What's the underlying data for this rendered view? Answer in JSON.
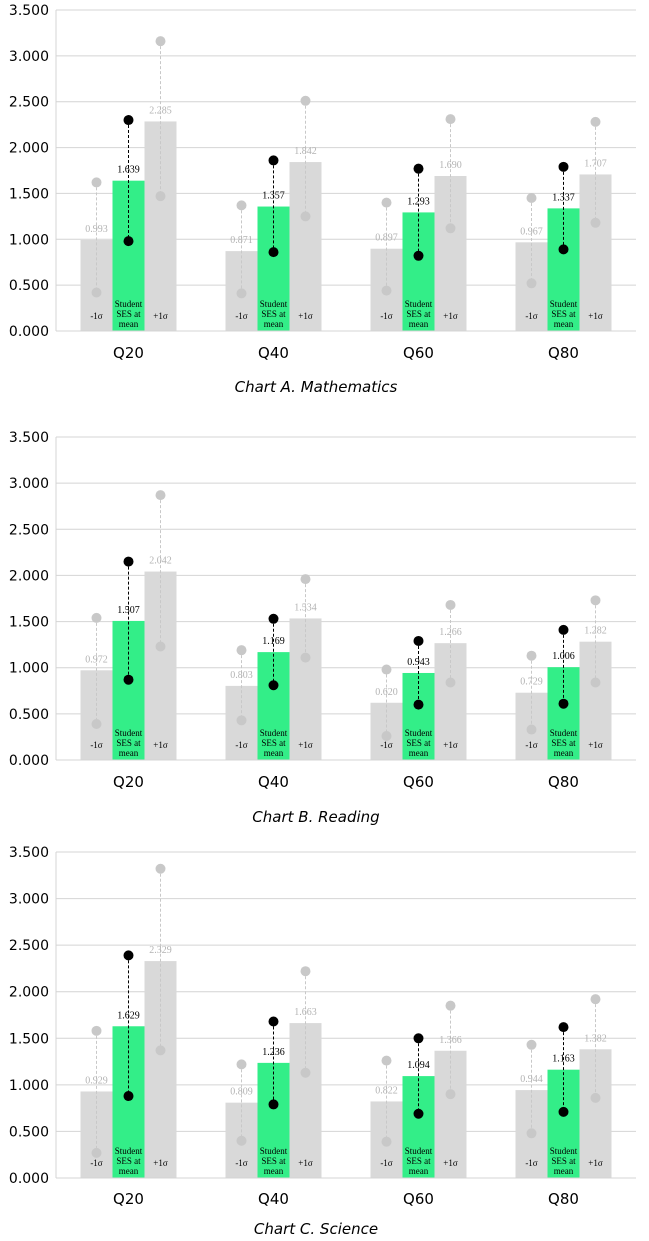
{
  "bar_labels": {
    "low": "-1σ",
    "mean": [
      "Student",
      "SES at",
      "mean"
    ],
    "high": "+1σ"
  },
  "y_ticks": [
    "0.000",
    "0.500",
    "1.000",
    "1.500",
    "2.000",
    "2.500",
    "3.000",
    "3.500"
  ],
  "colors": {
    "side_bar": "#d9d9d9",
    "mean_bar": "#33ee88",
    "side_dot": "#c8c8c8",
    "mean_dot": "#000000",
    "gridline": "#d4d4d4",
    "side_label": "#b3b3b3"
  },
  "chart_data": [
    {
      "type": "bar",
      "title": "Chart A. Mathematics",
      "categories": [
        "Q20",
        "Q40",
        "Q60",
        "Q80"
      ],
      "ylim": [
        0,
        3.5
      ],
      "grid": true,
      "series": [
        {
          "values": [
            0.993,
            0.871,
            0.897,
            0.967
          ],
          "labels": [
            "0.993",
            "0.871",
            "0.897",
            "0.967"
          ],
          "ci_low": [
            0.42,
            0.41,
            0.44,
            0.52
          ],
          "ci_high": [
            1.62,
            1.37,
            1.4,
            1.45
          ]
        },
        {
          "values": [
            1.639,
            1.357,
            1.293,
            1.337
          ],
          "labels": [
            "1.639",
            "1.357",
            "1.293",
            "1.337"
          ],
          "ci_low": [
            0.98,
            0.86,
            0.82,
            0.89
          ],
          "ci_high": [
            2.3,
            1.86,
            1.77,
            1.79
          ]
        },
        {
          "values": [
            2.285,
            1.842,
            1.69,
            1.707
          ],
          "labels": [
            "2.285",
            "1.842",
            "1.690",
            "1.707"
          ],
          "ci_low": [
            1.47,
            1.25,
            1.12,
            1.18
          ],
          "ci_high": [
            3.16,
            2.51,
            2.31,
            2.28
          ]
        }
      ]
    },
    {
      "type": "bar",
      "title": "Chart B. Reading",
      "categories": [
        "Q20",
        "Q40",
        "Q60",
        "Q80"
      ],
      "ylim": [
        0,
        3.5
      ],
      "grid": true,
      "series": [
        {
          "values": [
            0.972,
            0.803,
            0.62,
            0.729
          ],
          "labels": [
            "0.972",
            "0.803",
            "0.620",
            "0.729"
          ],
          "ci_low": [
            0.39,
            0.43,
            0.26,
            0.33
          ],
          "ci_high": [
            1.54,
            1.19,
            0.98,
            1.13
          ]
        },
        {
          "values": [
            1.507,
            1.169,
            0.943,
            1.006
          ],
          "labels": [
            "1.507",
            "1.169",
            "0.943",
            "1.006"
          ],
          "ci_low": [
            0.87,
            0.81,
            0.6,
            0.61
          ],
          "ci_high": [
            2.15,
            1.53,
            1.29,
            1.41
          ]
        },
        {
          "values": [
            2.042,
            1.534,
            1.266,
            1.282
          ],
          "labels": [
            "2.042",
            "1.534",
            "1.266",
            "1.282"
          ],
          "ci_low": [
            1.23,
            1.11,
            0.84,
            0.84
          ],
          "ci_high": [
            2.87,
            1.96,
            1.68,
            1.73
          ]
        }
      ]
    },
    {
      "type": "bar",
      "title": "Chart C. Science",
      "categories": [
        "Q20",
        "Q40",
        "Q60",
        "Q80"
      ],
      "ylim": [
        0,
        3.5
      ],
      "grid": true,
      "series": [
        {
          "values": [
            0.929,
            0.809,
            0.822,
            0.944
          ],
          "labels": [
            "0.929",
            "0.809",
            "0.822",
            "0.944"
          ],
          "ci_low": [
            0.27,
            0.4,
            0.39,
            0.48
          ],
          "ci_high": [
            1.58,
            1.22,
            1.26,
            1.43
          ]
        },
        {
          "values": [
            1.629,
            1.236,
            1.094,
            1.163
          ],
          "labels": [
            "1.629",
            "1.236",
            "1.094",
            "1.163"
          ],
          "ci_low": [
            0.88,
            0.79,
            0.69,
            0.71
          ],
          "ci_high": [
            2.39,
            1.68,
            1.5,
            1.62
          ]
        },
        {
          "values": [
            2.329,
            1.663,
            1.366,
            1.382
          ],
          "labels": [
            "2.329",
            "1.663",
            "1.366",
            "1.382"
          ],
          "ci_low": [
            1.37,
            1.13,
            0.9,
            0.86
          ],
          "ci_high": [
            3.32,
            2.22,
            1.85,
            1.92
          ]
        }
      ]
    }
  ]
}
